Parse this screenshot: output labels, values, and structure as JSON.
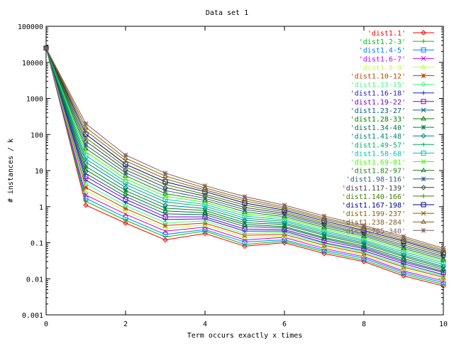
{
  "chart_data": {
    "type": "line",
    "title": "Data set 1",
    "xlabel": "Term occurs exactly x times",
    "ylabel": "# instances / k",
    "xlim": [
      0,
      10
    ],
    "ylim": [
      0.001,
      100000
    ],
    "yscale": "log",
    "x_ticks": [
      0,
      2,
      4,
      6,
      8,
      10
    ],
    "y_ticks": [
      "0.001",
      "0.01",
      "0.1",
      "1",
      "10",
      "100",
      "1000",
      "10000",
      "100000"
    ],
    "grid": false,
    "legend_position": "top-right",
    "x": [
      0,
      1,
      2,
      3,
      4,
      5,
      6,
      7,
      8,
      9,
      10
    ],
    "series": [
      {
        "name": "'dist1.1'",
        "color": "#ff0000",
        "marker": "diamond",
        "values": [
          25000,
          1.1,
          0.35,
          0.12,
          0.18,
          0.08,
          0.1,
          0.05,
          0.03,
          0.012,
          0.0063
        ]
      },
      {
        "name": "'dist1.2-3'",
        "color": "#00c000",
        "marker": "plus",
        "values": [
          25000,
          1.4,
          0.42,
          0.145,
          0.21,
          0.09,
          0.11,
          0.056,
          0.033,
          0.0135,
          0.007
        ]
      },
      {
        "name": "'dist1.4-5'",
        "color": "#0080ff",
        "marker": "square",
        "values": [
          25000,
          1.7,
          0.5,
          0.17,
          0.23,
          0.105,
          0.12,
          0.062,
          0.037,
          0.015,
          0.0078
        ]
      },
      {
        "name": "'dist1.6-7'",
        "color": "#c000ff",
        "marker": "cross",
        "values": [
          25000,
          2.1,
          0.62,
          0.21,
          0.27,
          0.12,
          0.14,
          0.069,
          0.041,
          0.0165,
          0.0087
        ]
      },
      {
        "name": "'dist1.8-9'",
        "color": "#c0ff40",
        "marker": "triangle",
        "values": [
          25000,
          2.7,
          0.74,
          0.25,
          0.31,
          0.14,
          0.15,
          0.076,
          0.045,
          0.0185,
          0.0096
        ]
      },
      {
        "name": "'dist1.10-12'",
        "color": "#c04000",
        "marker": "star",
        "values": [
          25000,
          3.4,
          0.89,
          0.3,
          0.35,
          0.16,
          0.17,
          0.085,
          0.05,
          0.021,
          0.011
        ]
      },
      {
        "name": "'dist1.13-15'",
        "color": "#40ff80",
        "marker": "diamond",
        "values": [
          25000,
          4.3,
          1.07,
          0.36,
          0.4,
          0.18,
          0.19,
          0.094,
          0.055,
          0.023,
          0.012
        ]
      },
      {
        "name": "'dist1.16-18'",
        "color": "#2020c0",
        "marker": "plus",
        "values": [
          25000,
          5.4,
          1.3,
          0.44,
          0.46,
          0.21,
          0.21,
          0.1,
          0.06,
          0.026,
          0.013
        ]
      },
      {
        "name": "'dist1.19-22'",
        "color": "#8000c0",
        "marker": "square",
        "values": [
          25000,
          6.8,
          1.6,
          0.52,
          0.52,
          0.24,
          0.23,
          0.115,
          0.068,
          0.029,
          0.015
        ]
      },
      {
        "name": "'dist1.23-27'",
        "color": "#006080",
        "marker": "cross",
        "values": [
          25000,
          8.3,
          1.9,
          0.63,
          0.6,
          0.28,
          0.26,
          0.13,
          0.074,
          0.032,
          0.016
        ]
      },
      {
        "name": "'dist1.28-33'",
        "color": "#008000",
        "marker": "triangle",
        "values": [
          25000,
          10.5,
          2.3,
          0.76,
          0.68,
          0.32,
          0.28,
          0.14,
          0.081,
          0.036,
          0.018
        ]
      },
      {
        "name": "'dist1.34-40'",
        "color": "#008040",
        "marker": "star",
        "values": [
          25000,
          13,
          2.8,
          0.91,
          0.78,
          0.36,
          0.32,
          0.16,
          0.091,
          0.041,
          0.02
        ]
      },
      {
        "name": "'dist1.41-48'",
        "color": "#008080",
        "marker": "diamond",
        "values": [
          25000,
          17,
          3.4,
          1.1,
          0.89,
          0.42,
          0.35,
          0.175,
          0.1,
          0.045,
          0.022
        ]
      },
      {
        "name": "'dist1.49-57'",
        "color": "#00b060",
        "marker": "plus",
        "values": [
          25000,
          21,
          4.1,
          1.35,
          1.02,
          0.48,
          0.39,
          0.195,
          0.11,
          0.05,
          0.025
        ]
      },
      {
        "name": "'dist1.58-68'",
        "color": "#00c0c0",
        "marker": "square",
        "values": [
          25000,
          26,
          4.9,
          1.6,
          1.15,
          0.55,
          0.43,
          0.215,
          0.12,
          0.056,
          0.028
        ]
      },
      {
        "name": "'dist1.69-81'",
        "color": "#40ff00",
        "marker": "cross",
        "values": [
          25000,
          33,
          5.9,
          1.95,
          1.32,
          0.63,
          0.48,
          0.24,
          0.135,
          0.063,
          0.031
        ]
      },
      {
        "name": "'dist1.82-97'",
        "color": "#208020",
        "marker": "triangle",
        "values": [
          25000,
          41,
          7.2,
          2.3,
          1.5,
          0.72,
          0.53,
          0.265,
          0.15,
          0.07,
          0.034
        ]
      },
      {
        "name": "'dist1.98-116'",
        "color": "#306080",
        "marker": "star",
        "values": [
          25000,
          51,
          8.7,
          2.8,
          1.7,
          0.83,
          0.59,
          0.295,
          0.165,
          0.078,
          0.038
        ]
      },
      {
        "name": "'dist1.117-139'",
        "color": "#404040",
        "marker": "diamond",
        "values": [
          25000,
          65,
          10.5,
          3.4,
          1.95,
          0.95,
          0.65,
          0.325,
          0.18,
          0.087,
          0.042
        ]
      },
      {
        "name": "'dist1.140-166'",
        "color": "#408000",
        "marker": "plus",
        "values": [
          25000,
          81,
          12.6,
          4.1,
          2.2,
          1.1,
          0.72,
          0.36,
          0.2,
          0.098,
          0.047
        ]
      },
      {
        "name": "'dist1.167-198'",
        "color": "#000080",
        "marker": "square",
        "values": [
          25000,
          102,
          15,
          4.9,
          2.6,
          1.26,
          0.8,
          0.4,
          0.22,
          0.11,
          0.052
        ]
      },
      {
        "name": "'dist1.199-237'",
        "color": "#806000",
        "marker": "cross",
        "values": [
          25000,
          126,
          18.6,
          5.9,
          2.9,
          1.45,
          0.89,
          0.445,
          0.25,
          0.12,
          0.058
        ]
      },
      {
        "name": "'dist1.238-284'",
        "color": "#806020",
        "marker": "triangle",
        "values": [
          25000,
          158,
          22,
          7.1,
          3.3,
          1.65,
          0.98,
          0.49,
          0.27,
          0.135,
          0.063
        ]
      },
      {
        "name": "'dist1.285-340'",
        "color": "#806060",
        "marker": "star",
        "values": [
          25000,
          200,
          27,
          8.5,
          3.8,
          1.9,
          1.1,
          0.55,
          0.3,
          0.15,
          0.07
        ]
      }
    ]
  }
}
